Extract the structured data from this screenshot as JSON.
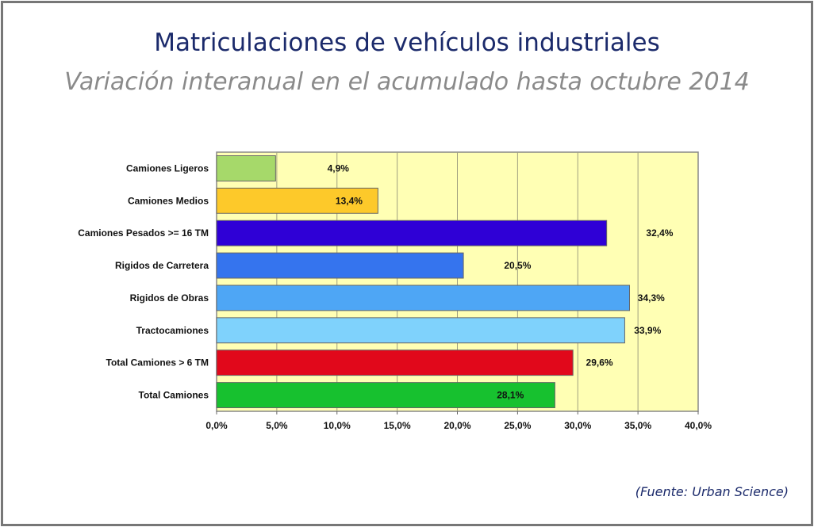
{
  "title": "Matriculaciones de vehículos industriales",
  "subtitle": "Variación interanual en el acumulado hasta octubre 2014",
  "source": "(Fuente: Urban Science)",
  "chart_data": {
    "type": "bar",
    "orientation": "horizontal",
    "categories": [
      "Camiones Ligeros",
      "Camiones Medios",
      "Camiones Pesados >= 16 TM",
      "Rigidos de Carretera",
      "Rigidos de Obras",
      "Tractocamiones",
      "Total Camiones  > 6 TM",
      "Total Camiones"
    ],
    "values": [
      4.9,
      13.4,
      32.4,
      20.5,
      34.3,
      33.9,
      29.6,
      28.1
    ],
    "data_labels": [
      "4,9%",
      "13,4%",
      "32,4%",
      "20,5%",
      "34,3%",
      "33,9%",
      "29,6%",
      "28,1%"
    ],
    "colors": [
      "#a6d96a",
      "#fdc92a",
      "#2f00d6",
      "#3574ee",
      "#4ea6f5",
      "#7fd2fc",
      "#e1081b",
      "#17c12f"
    ],
    "xlim": [
      0,
      40
    ],
    "xticks": [
      "0,0%",
      "5,0%",
      "10,0%",
      "15,0%",
      "20,0%",
      "25,0%",
      "30,0%",
      "35,0%",
      "40,0%"
    ],
    "xlabel": "",
    "ylabel": "",
    "grid": true,
    "plot_background": "#ffffb4"
  }
}
